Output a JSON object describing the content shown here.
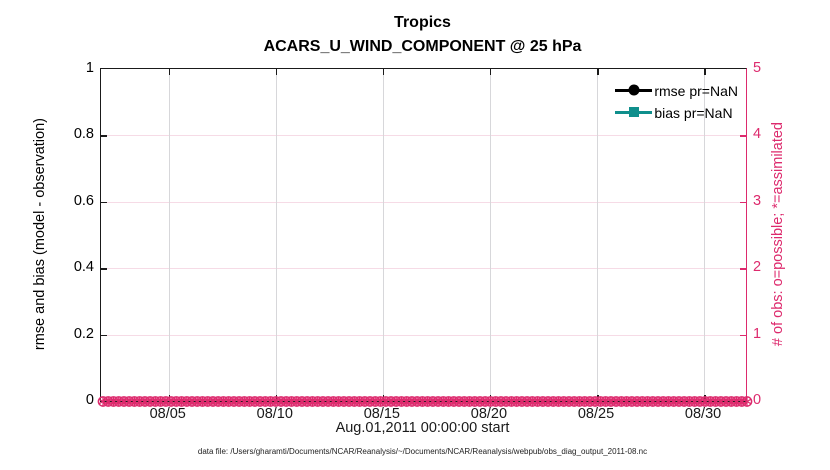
{
  "title": {
    "line1": "Tropics",
    "line2": "ACARS_U_WIND_COMPONENT @ 25 hPa"
  },
  "left_axis": {
    "label": "rmse and bias (model - observation)",
    "ticks": [
      "0",
      "0.2",
      "0.4",
      "0.6",
      "0.8",
      "1"
    ],
    "tick_positions_pct": [
      0,
      20,
      40,
      60,
      80,
      100
    ],
    "range": [
      0,
      1
    ],
    "color": "#000000"
  },
  "right_axis": {
    "label": "# of obs: o=possible; *=assimilated",
    "ticks": [
      "0",
      "1",
      "2",
      "3",
      "4",
      "5"
    ],
    "tick_positions_pct": [
      0,
      20,
      40,
      60,
      80,
      100
    ],
    "range": [
      0,
      5
    ],
    "color": "#dd2a6d"
  },
  "x_axis": {
    "label": "Aug.01,2011 00:00:00 start",
    "ticks": [
      "08/05",
      "08/10",
      "08/15",
      "08/20",
      "08/25",
      "08/30"
    ],
    "tick_positions_pct": [
      10.5,
      27.1,
      43.7,
      60.3,
      76.9,
      93.5
    ]
  },
  "legend": {
    "items": [
      {
        "label": "rmse pr=NaN",
        "color": "#000000",
        "marker": "circle"
      },
      {
        "label": "bias pr=NaN",
        "color": "#0f8f8c",
        "marker": "square"
      }
    ]
  },
  "caption": "data file: /Users/gharamti/Documents/NCAR/Reanalysis/~/Documents/NCAR/Reanalysis/webpub/obs_diag_output_2011-08.nc",
  "colors": {
    "obs_accent": "#dd2a6d",
    "grid_pink": "#f6dbe6",
    "grid_gray": "#d7d7da",
    "bias_teal": "#0f8f8c",
    "axis_black": "#1a1a1a"
  },
  "chart_data": {
    "type": "line",
    "title": "Tropics",
    "subtitle": "ACARS_U_WIND_COMPONENT @ 25 hPa",
    "xlabel": "Aug.01,2011 00:00:00 start",
    "ylabel_left": "rmse and bias (model - observation)",
    "ylabel_right": "# of obs: o=possible; *=assimilated",
    "x_ticks": [
      "08/05",
      "08/10",
      "08/15",
      "08/20",
      "08/25",
      "08/30"
    ],
    "x_range": [
      "08/01",
      "09/01"
    ],
    "ylim_left": [
      0,
      1
    ],
    "ylim_right": [
      0,
      5
    ],
    "grid": true,
    "legend_position": "upper-right",
    "series": [
      {
        "name": "rmse pr=NaN",
        "axis": "left",
        "values": "NaN",
        "note": "no curve plotted"
      },
      {
        "name": "bias pr=NaN",
        "axis": "left",
        "values": "NaN",
        "note": "no curve plotted"
      },
      {
        "name": "# obs possible (o markers)",
        "axis": "right",
        "constant_value": 0,
        "extent": "every bin, full month"
      },
      {
        "name": "# obs assimilated (* markers)",
        "axis": "right",
        "constant_value": 0,
        "extent": "every bin, full month"
      }
    ]
  }
}
